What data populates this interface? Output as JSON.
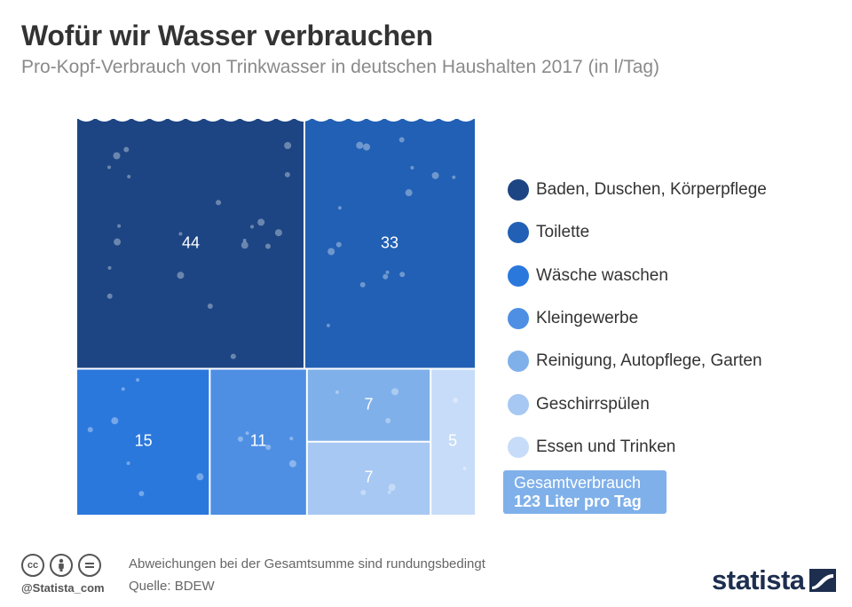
{
  "header": {
    "title": "Wofür wir Wasser verbrauchen",
    "subtitle": "Pro-Kopf-Verbrauch von Trinkwasser in deutschen Haushalten 2017 (in l/Tag)"
  },
  "chart_data": {
    "type": "treemap",
    "title": "Wofür wir Wasser verbrauchen",
    "subtitle": "Pro-Kopf-Verbrauch von Trinkwasser in deutschen Haushalten 2017 (in l/Tag)",
    "unit": "l/Tag",
    "categories": [
      "Baden, Duschen, Körperpflege",
      "Toilette",
      "Wäsche waschen",
      "Kleingewerbe",
      "Reinigung, Autopflege, Garten",
      "Geschirrspülen",
      "Essen und Trinken"
    ],
    "values": [
      44,
      33,
      15,
      11,
      7,
      7,
      5
    ],
    "colors": [
      "#1d4583",
      "#2160b4",
      "#2b78dd",
      "#4e8fe3",
      "#7fb0ea",
      "#a6c8f2",
      "#c6dcf8"
    ],
    "legend_position": "right",
    "total": {
      "label": "Gesamtverbrauch",
      "value_text": "123 Liter pro Tag"
    }
  },
  "footer": {
    "note": "Abweichungen bei der Gesamtsumme sind rundungsbedingt",
    "source": "Quelle: BDEW",
    "handle": "@Statista_com",
    "brand": "statista"
  }
}
